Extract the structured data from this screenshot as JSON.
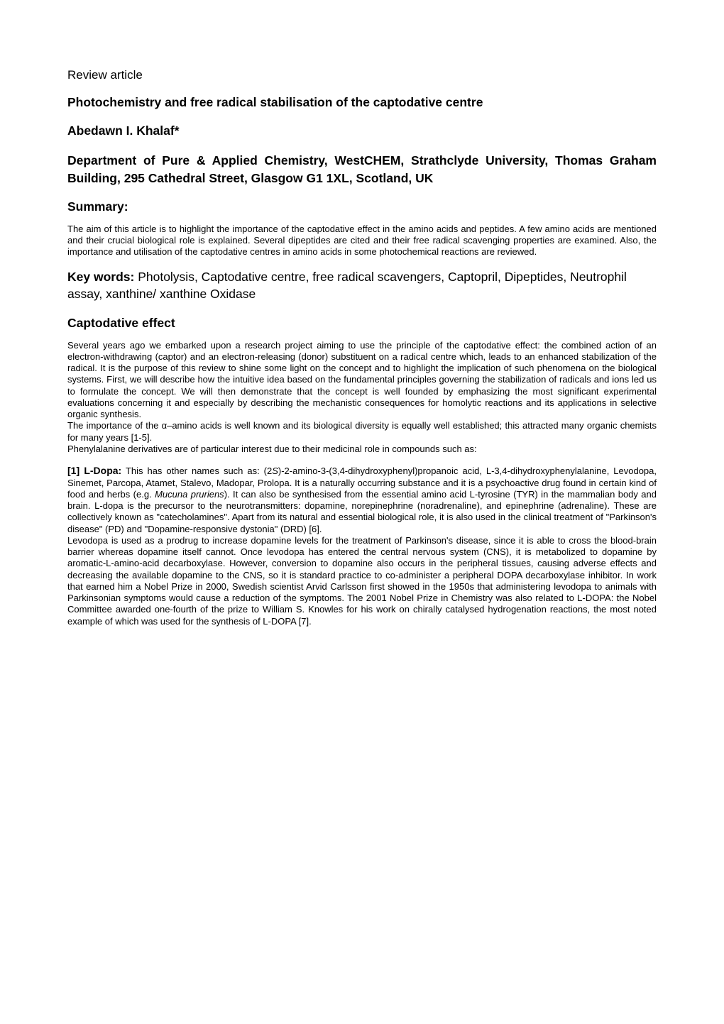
{
  "review_label": "Review article",
  "title": "Photochemistry and free radical stabilisation of the captodative centre",
  "author": "Abedawn I. Khalaf*",
  "department": "Department of Pure & Applied Chemistry, WestCHEM, Strathclyde University, Thomas Graham Building, 295 Cathedral Street, Glasgow G1 1XL, Scotland, UK",
  "summary_label": "Summary:",
  "summary_body": "The aim of this article is to highlight the importance of the captodative effect in the amino acids and peptides. A few amino acids are mentioned and their crucial biological role is explained. Several dipeptides are cited and their free radical scavenging properties are examined. Also, the importance and utilisation of the captodative centres in amino acids in some photochemical reactions are reviewed.",
  "keywords_lead": "Key words:",
  "keywords_body": " Photolysis, Captodative centre, free radical scavengers, Captopril, Dipeptides, Neutrophil assay, xanthine/ xanthine Oxidase",
  "section_captodative": "Captodative effect",
  "capto_p1": "Several years ago we embarked upon a research project aiming to use the principle of the captodative effect: the combined action of an electron-withdrawing (captor) and an electron-releasing (donor) substituent on a radical centre which, leads to an enhanced stabilization of the radical. It is the purpose of this review to shine some light on the concept and to highlight the implication of such phenomena on the biological systems. First, we will describe how the intuitive idea based on the fundamental principles governing the stabilization of radicals and ions led us to formulate the concept. We will then demonstrate that the concept is well founded by emphasizing the most significant experimental evaluations concerning it and especially by describing the mechanistic consequences for homolytic reactions and its applications in selective organic synthesis.",
  "capto_p2": "The importance of the α–amino acids is well known and its biological diversity is equally well established; this attracted many organic chemists for many years [1-5].",
  "capto_p3": "Phenylalanine derivatives are of particular interest due to their medicinal role in compounds such as:",
  "ldopa_lead": "[1] L-Dopa:",
  "ldopa_p1_a": " This has other names such as:  (2",
  "ldopa_p1_s": "S",
  "ldopa_p1_b": ")-2-amino-3-(3,4-dihydroxyphenyl)propanoic acid, L-3,4-dihydroxyphenylalanine, Levodopa, Sinemet, Parcopa, Atamet, Stalevo, Madopar, Prolopa. It is a naturally occurring substance and it is a psychoactive drug found in certain kind of food and herbs (e.g. ",
  "ldopa_p1_it": "Mucuna pruriens",
  "ldopa_p1_c": "). It can also be synthesised from the essential amino acid L-tyrosine (TYR) in the mammalian body and brain. L-dopa is the precursor to the neurotransmitters: dopamine, norepinephrine (noradrenaline), and epinephrine (adrenaline). These are collectively known as \"catecholamines\". Apart from its natural and essential biological role, it is also used in the clinical treatment of \"Parkinson's disease\" (PD) and \"Dopamine-responsive dystonia\" (DRD) [6].",
  "ldopa_p2": "Levodopa is used as a prodrug to increase dopamine levels for the treatment of Parkinson's disease, since it is able to cross the blood-brain barrier whereas dopamine itself cannot. Once levodopa has entered the central nervous system (CNS), it is metabolized to dopamine by aromatic-L-amino-acid decarboxylase. However, conversion to dopamine also occurs in the peripheral tissues, causing adverse effects and decreasing the available dopamine to the CNS, so it is standard practice to co-administer a peripheral DOPA decarboxylase inhibitor. In work that earned him a Nobel Prize in 2000, Swedish scientist Arvid Carlsson first showed in the 1950s that administering levodopa to animals with Parkinsonian symptoms would cause a reduction of the symptoms. The 2001 Nobel Prize in Chemistry was also related to L-DOPA: the Nobel Committee awarded one-fourth of the prize to William S. Knowles for his work on chirally catalysed hydrogenation reactions, the most noted example of which was used for the synthesis of L-DOPA [7].",
  "colors": {
    "text": "#000000",
    "bg": "#ffffff"
  },
  "fonts": {
    "heading_size_pt": 13,
    "body_size_pt": 10,
    "family": "Arial"
  }
}
